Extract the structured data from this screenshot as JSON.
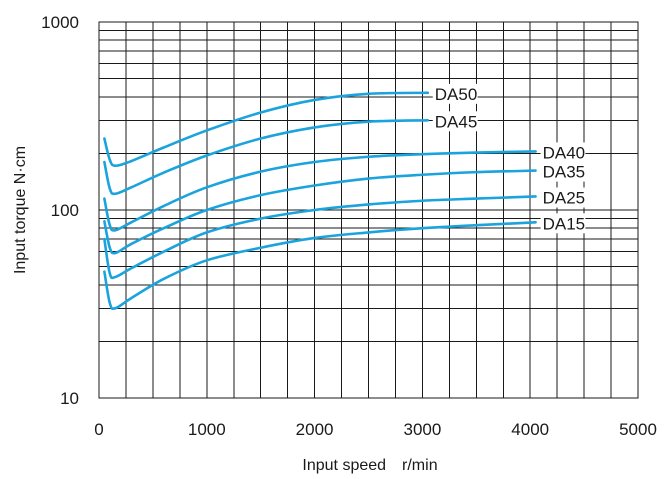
{
  "chart_data": {
    "type": "line",
    "xlabel": "Input speed　r/min",
    "ylabel": "Input torque N·cm",
    "xlim": [
      0,
      5000
    ],
    "ylim": [
      10,
      1000
    ],
    "y_scale": "log",
    "grid": true,
    "x_ticks": [
      "0",
      "1000",
      "2000",
      "3000",
      "4000",
      "5000"
    ],
    "y_ticks": [
      "10",
      "100",
      "1000"
    ],
    "line_color": "#1aa3dd",
    "series": [
      {
        "name": "DA50",
        "x": [
          50,
          100,
          150,
          300,
          600,
          1000,
          1500,
          2000,
          2500,
          3050
        ],
        "y": [
          240,
          185,
          172,
          182,
          215,
          265,
          330,
          385,
          415,
          420
        ]
      },
      {
        "name": "DA45",
        "x": [
          50,
          100,
          150,
          300,
          600,
          1000,
          1500,
          2000,
          2500,
          3050
        ],
        "y": [
          180,
          130,
          122,
          132,
          158,
          195,
          240,
          275,
          295,
          300
        ]
      },
      {
        "name": "DA40",
        "x": [
          50,
          100,
          150,
          300,
          600,
          1000,
          1500,
          2000,
          2500,
          3000,
          3500,
          4050
        ],
        "y": [
          115,
          83,
          78,
          86,
          105,
          132,
          160,
          180,
          192,
          198,
          202,
          205
        ]
      },
      {
        "name": "DA35",
        "x": [
          50,
          100,
          150,
          300,
          600,
          1000,
          1500,
          2000,
          2500,
          3000,
          3500,
          4050
        ],
        "y": [
          87,
          63,
          59,
          66,
          80,
          100,
          120,
          135,
          147,
          154,
          159,
          162
        ]
      },
      {
        "name": "DA25",
        "x": [
          50,
          100,
          150,
          300,
          600,
          1000,
          1500,
          2000,
          2500,
          3000,
          3500,
          4050
        ],
        "y": [
          70,
          46,
          44,
          49,
          60,
          76,
          90,
          100,
          107,
          112,
          115,
          118
        ]
      },
      {
        "name": "DA15",
        "x": [
          50,
          100,
          150,
          300,
          600,
          1000,
          1500,
          2000,
          2500,
          3000,
          3500,
          4050
        ],
        "y": [
          47,
          32,
          30,
          34,
          43,
          54,
          63,
          71,
          76,
          80,
          83,
          86
        ]
      }
    ]
  }
}
